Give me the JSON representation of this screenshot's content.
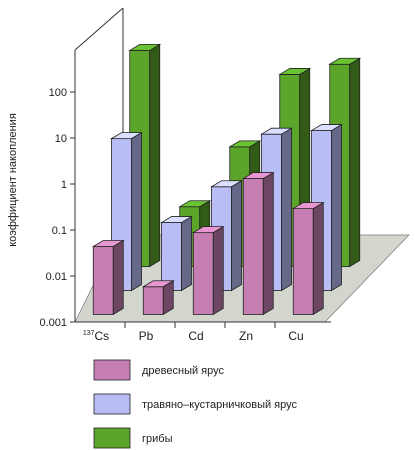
{
  "chart_data": {
    "type": "bar",
    "subtype": "3d-grouped-depth",
    "ylabel": "коэффициент накопления",
    "yscale": "log",
    "ylim": [
      0.001,
      100
    ],
    "yticks": [
      "0.001",
      "0.01",
      "0.1",
      "1",
      "10",
      "100"
    ],
    "categories": [
      "137Cs",
      "Pb",
      "Cd",
      "Zn",
      "Cu"
    ],
    "category_labels": [
      {
        "sup": "137",
        "main": "Cs"
      },
      {
        "sup": "",
        "main": "Pb"
      },
      {
        "sup": "",
        "main": "Cd"
      },
      {
        "sup": "",
        "main": "Zn"
      },
      {
        "sup": "",
        "main": "Cu"
      }
    ],
    "series": [
      {
        "name": "древесный ярус",
        "color": "#c57fb2",
        "values": [
          0.03,
          0.004,
          0.06,
          0.9,
          0.2
        ]
      },
      {
        "name": "травяно–кустарничковый ярус",
        "color": "#b9bdf5",
        "values": [
          2.0,
          0.03,
          0.18,
          2.5,
          3.0
        ]
      },
      {
        "name": "грибы",
        "color": "#5aa52a",
        "values": [
          50,
          0.02,
          0.4,
          15,
          25
        ]
      }
    ],
    "grid": false,
    "legend_position": "bottom"
  }
}
